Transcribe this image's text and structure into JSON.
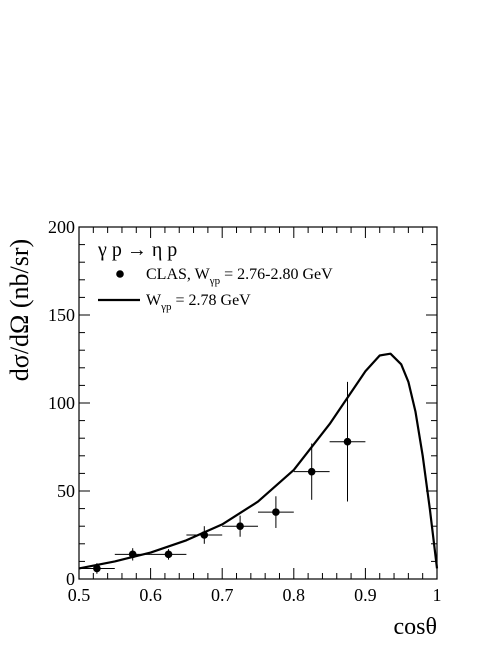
{
  "chart_data": {
    "type": "scatter",
    "title": "",
    "reaction": "γ p → η p",
    "xlabel": "cosθ",
    "ylabel": "dσ/dΩ (nb/sr)",
    "xlim": [
      0.5,
      1.0
    ],
    "ylim": [
      0,
      200
    ],
    "grid": false,
    "legend_position": "top-left",
    "x_ticks": [
      0.5,
      0.6,
      0.7,
      0.8,
      0.9,
      1.0
    ],
    "x_tick_labels": [
      "0.5",
      "0.6",
      "0.7",
      "0.8",
      "0.9",
      "1"
    ],
    "y_ticks": [
      0,
      50,
      100,
      150,
      200
    ],
    "y_tick_labels": [
      "0",
      "50",
      "100",
      "150",
      "200"
    ],
    "series": [
      {
        "name": "CLAS, W_γp = 2.76-2.80 GeV",
        "legend_prefix": "CLAS, W",
        "legend_sub": "γp",
        "legend_suffix": " = 2.76-2.80 GeV",
        "kind": "points",
        "color": "#000000",
        "points": [
          {
            "x": 0.525,
            "y": 6,
            "xerr": 0.025,
            "yerr": 3
          },
          {
            "x": 0.575,
            "y": 14,
            "xerr": 0.025,
            "yerr": 3.5
          },
          {
            "x": 0.625,
            "y": 14,
            "xerr": 0.025,
            "yerr": 3
          },
          {
            "x": 0.675,
            "y": 25,
            "xerr": 0.025,
            "yerr": 5
          },
          {
            "x": 0.725,
            "y": 30,
            "xerr": 0.025,
            "yerr": 6
          },
          {
            "x": 0.775,
            "y": 38,
            "xerr": 0.025,
            "yerr": 9
          },
          {
            "x": 0.825,
            "y": 61,
            "xerr": 0.025,
            "yerr": 16
          },
          {
            "x": 0.875,
            "y": 78,
            "xerr": 0.025,
            "yerr": 34
          }
        ]
      },
      {
        "name": "W_γp = 2.78 GeV",
        "legend_prefix": "W",
        "legend_sub": "γp",
        "legend_suffix": " = 2.78 GeV",
        "kind": "line",
        "color": "#000000",
        "x": [
          0.5,
          0.55,
          0.6,
          0.65,
          0.7,
          0.75,
          0.8,
          0.85,
          0.88,
          0.9,
          0.92,
          0.935,
          0.95,
          0.96,
          0.97,
          0.98,
          0.99,
          1.0
        ],
        "y": [
          6,
          10,
          15,
          22,
          31,
          44,
          62,
          88,
          106,
          118,
          127,
          128,
          122,
          112,
          95,
          70,
          40,
          6
        ]
      }
    ]
  }
}
